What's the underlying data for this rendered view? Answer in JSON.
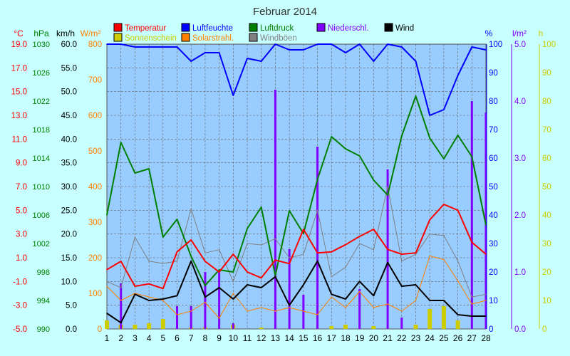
{
  "chart_data": {
    "type": "line",
    "title": "Februar 2014",
    "x": [
      1,
      2,
      3,
      4,
      5,
      6,
      7,
      8,
      9,
      10,
      11,
      12,
      13,
      14,
      15,
      16,
      17,
      18,
      19,
      20,
      21,
      22,
      23,
      24,
      25,
      26,
      27,
      28
    ],
    "grid": true,
    "background": "#c8ffff",
    "plot_background": "#99ccff",
    "axes": {
      "temp": {
        "unit": "°C",
        "ticks": [
          "19.0",
          "17.0",
          "15.0",
          "13.0",
          "11.0",
          "9.0",
          "7.0",
          "5.0",
          "3.0",
          "1.0",
          "-1.0",
          "-3.0",
          "-5.0"
        ],
        "range": [
          -5,
          19
        ],
        "color": "#ff0000"
      },
      "pressure": {
        "unit": "hPa",
        "ticks": [
          "1030",
          "1026",
          "1022",
          "1018",
          "1014",
          "1010",
          "1006",
          "1002",
          "998",
          "994",
          "990"
        ],
        "range": [
          990,
          1030
        ],
        "color": "#008000"
      },
      "wind": {
        "unit": "km/h",
        "ticks": [
          "60.0",
          "55.0",
          "50.0",
          "45.0",
          "40.0",
          "35.0",
          "30.0",
          "25.0",
          "20.0",
          "15.0",
          "10.0",
          "5.0",
          "0.0"
        ],
        "range": [
          0,
          60
        ],
        "color": "#000000"
      },
      "solar": {
        "unit": "W/m²",
        "ticks": [
          "800",
          "700",
          "600",
          "500",
          "400",
          "300",
          "200",
          "100",
          "0"
        ],
        "range": [
          0,
          800
        ],
        "color": "#ff8000"
      },
      "humidity": {
        "unit": "%",
        "ticks": [
          "100",
          "90",
          "80",
          "70",
          "60",
          "50",
          "40",
          "30",
          "20",
          "10",
          "0"
        ],
        "range": [
          0,
          100
        ],
        "color": "#0000ff"
      },
      "precip": {
        "unit": "l/m²",
        "ticks": [
          "5.0",
          "4.0",
          "3.0",
          "2.0",
          "1.0",
          "0.0"
        ],
        "range": [
          0,
          5
        ],
        "color": "#8000ff"
      },
      "sunshine": {
        "unit": "h",
        "ticks": [
          "100",
          "90",
          "80",
          "70",
          "60",
          "50",
          "40",
          "30",
          "20",
          "10",
          "0"
        ],
        "range": [
          0,
          100
        ],
        "color": "#cccc00"
      }
    },
    "legend": [
      {
        "name": "Temperatur",
        "color": "#ff0000"
      },
      {
        "name": "Luftfeuchte",
        "color": "#0000ff"
      },
      {
        "name": "Luftdruck",
        "color": "#008000"
      },
      {
        "name": "Niederschl.",
        "color": "#8000ff"
      },
      {
        "name": "Wind",
        "color": "#000000"
      },
      {
        "name": "Sonnenschein",
        "color": "#cccc00"
      },
      {
        "name": "Solarstrahl.",
        "color": "#ff8000"
      },
      {
        "name": "Windböen",
        "color": "#808080"
      }
    ],
    "series": [
      {
        "name": "Temperatur",
        "axis": "temp",
        "kind": "line",
        "color": "#ff0000",
        "width": 2,
        "values": [
          0.0,
          0.7,
          -1.4,
          -1.2,
          -1.6,
          1.5,
          2.5,
          0.7,
          -0.2,
          1.3,
          -0.2,
          -0.7,
          0.8,
          0.5,
          3.4,
          1.4,
          1.5,
          2.1,
          2.8,
          3.4,
          1.7,
          1.3,
          1.4,
          4.2,
          5.5,
          5.0,
          2.3,
          1.3
        ]
      },
      {
        "name": "Luftfeuchte",
        "axis": "humidity",
        "kind": "line",
        "color": "#0000ff",
        "width": 2,
        "values": [
          100,
          100,
          99,
          99,
          99,
          99,
          94,
          97,
          97,
          82,
          95,
          94,
          100,
          98,
          98,
          100,
          100,
          97,
          100,
          94,
          100,
          99,
          94,
          75,
          77,
          89,
          99,
          98
        ]
      },
      {
        "name": "Luftdruck",
        "axis": "pressure",
        "kind": "line",
        "color": "#008000",
        "width": 2,
        "values": [
          1006.0,
          1016.2,
          1011.9,
          1012.5,
          1002.9,
          1005.4,
          1000.2,
          996.1,
          998.3,
          998.0,
          1004.1,
          1007.1,
          997.5,
          1006.6,
          1003.4,
          1011.0,
          1017.0,
          1015.3,
          1014.3,
          1010.9,
          1008.8,
          1017.1,
          1022.7,
          1016.8,
          1013.9,
          1017.2,
          1014.2,
          1004.6
        ]
      },
      {
        "name": "Windböen",
        "axis": "wind",
        "kind": "line",
        "color": "#808080",
        "width": 1,
        "values": [
          10.0,
          8.7,
          19.3,
          14.3,
          13.8,
          14.3,
          25.3,
          16.0,
          16.7,
          10.0,
          18.0,
          17.7,
          19.0,
          15.0,
          15.7,
          25.0,
          11.0,
          13.0,
          18.0,
          16.7,
          30.0,
          14.3,
          15.7,
          20.0,
          19.7,
          14.3,
          6.7,
          7.3
        ]
      },
      {
        "name": "Wind",
        "axis": "wind",
        "kind": "line",
        "color": "#000000",
        "width": 2,
        "values": [
          3.3,
          1.3,
          7.3,
          6.0,
          6.3,
          7.0,
          14.3,
          6.7,
          8.7,
          6.3,
          9.3,
          8.7,
          11.0,
          5.0,
          9.3,
          14.3,
          7.3,
          6.3,
          10.0,
          7.0,
          14.0,
          9.0,
          9.3,
          6.0,
          6.0,
          3.0,
          2.7,
          2.7
        ]
      },
      {
        "name": "Solarstrahl.",
        "axis": "solar",
        "kind": "line",
        "color": "#ff8000",
        "width": 1,
        "values": [
          120,
          80,
          100,
          90,
          80,
          40,
          50,
          75,
          30,
          100,
          50,
          60,
          50,
          60,
          50,
          40,
          90,
          60,
          105,
          60,
          70,
          50,
          80,
          205,
          195,
          135,
          70,
          80
        ]
      },
      {
        "name": "Niederschl.",
        "axis": "precip",
        "kind": "bar",
        "color": "#8000ff",
        "width": 3,
        "values": [
          0.0,
          0.8,
          0.0,
          0.0,
          0.0,
          0.4,
          0.4,
          1.0,
          1.0,
          0.1,
          0.0,
          0.0,
          4.2,
          1.4,
          0.6,
          3.2,
          0.0,
          0.0,
          0.7,
          0.0,
          2.8,
          0.2,
          0.0,
          0.0,
          0.0,
          0.0,
          4.0,
          3.8
        ]
      },
      {
        "name": "Sonnenschein",
        "axis": "sunshine",
        "kind": "bar",
        "color": "#cccc00",
        "width": 6,
        "values": [
          3.0,
          1.5,
          1.5,
          2.0,
          3.5,
          0.0,
          0.5,
          0.5,
          0.0,
          1.5,
          0.0,
          0.5,
          0.0,
          0.0,
          0.0,
          0.0,
          1.0,
          1.5,
          0.0,
          1.0,
          0.0,
          0.0,
          1.5,
          7.0,
          8.0,
          3.0,
          0.0,
          0.0
        ]
      }
    ]
  }
}
